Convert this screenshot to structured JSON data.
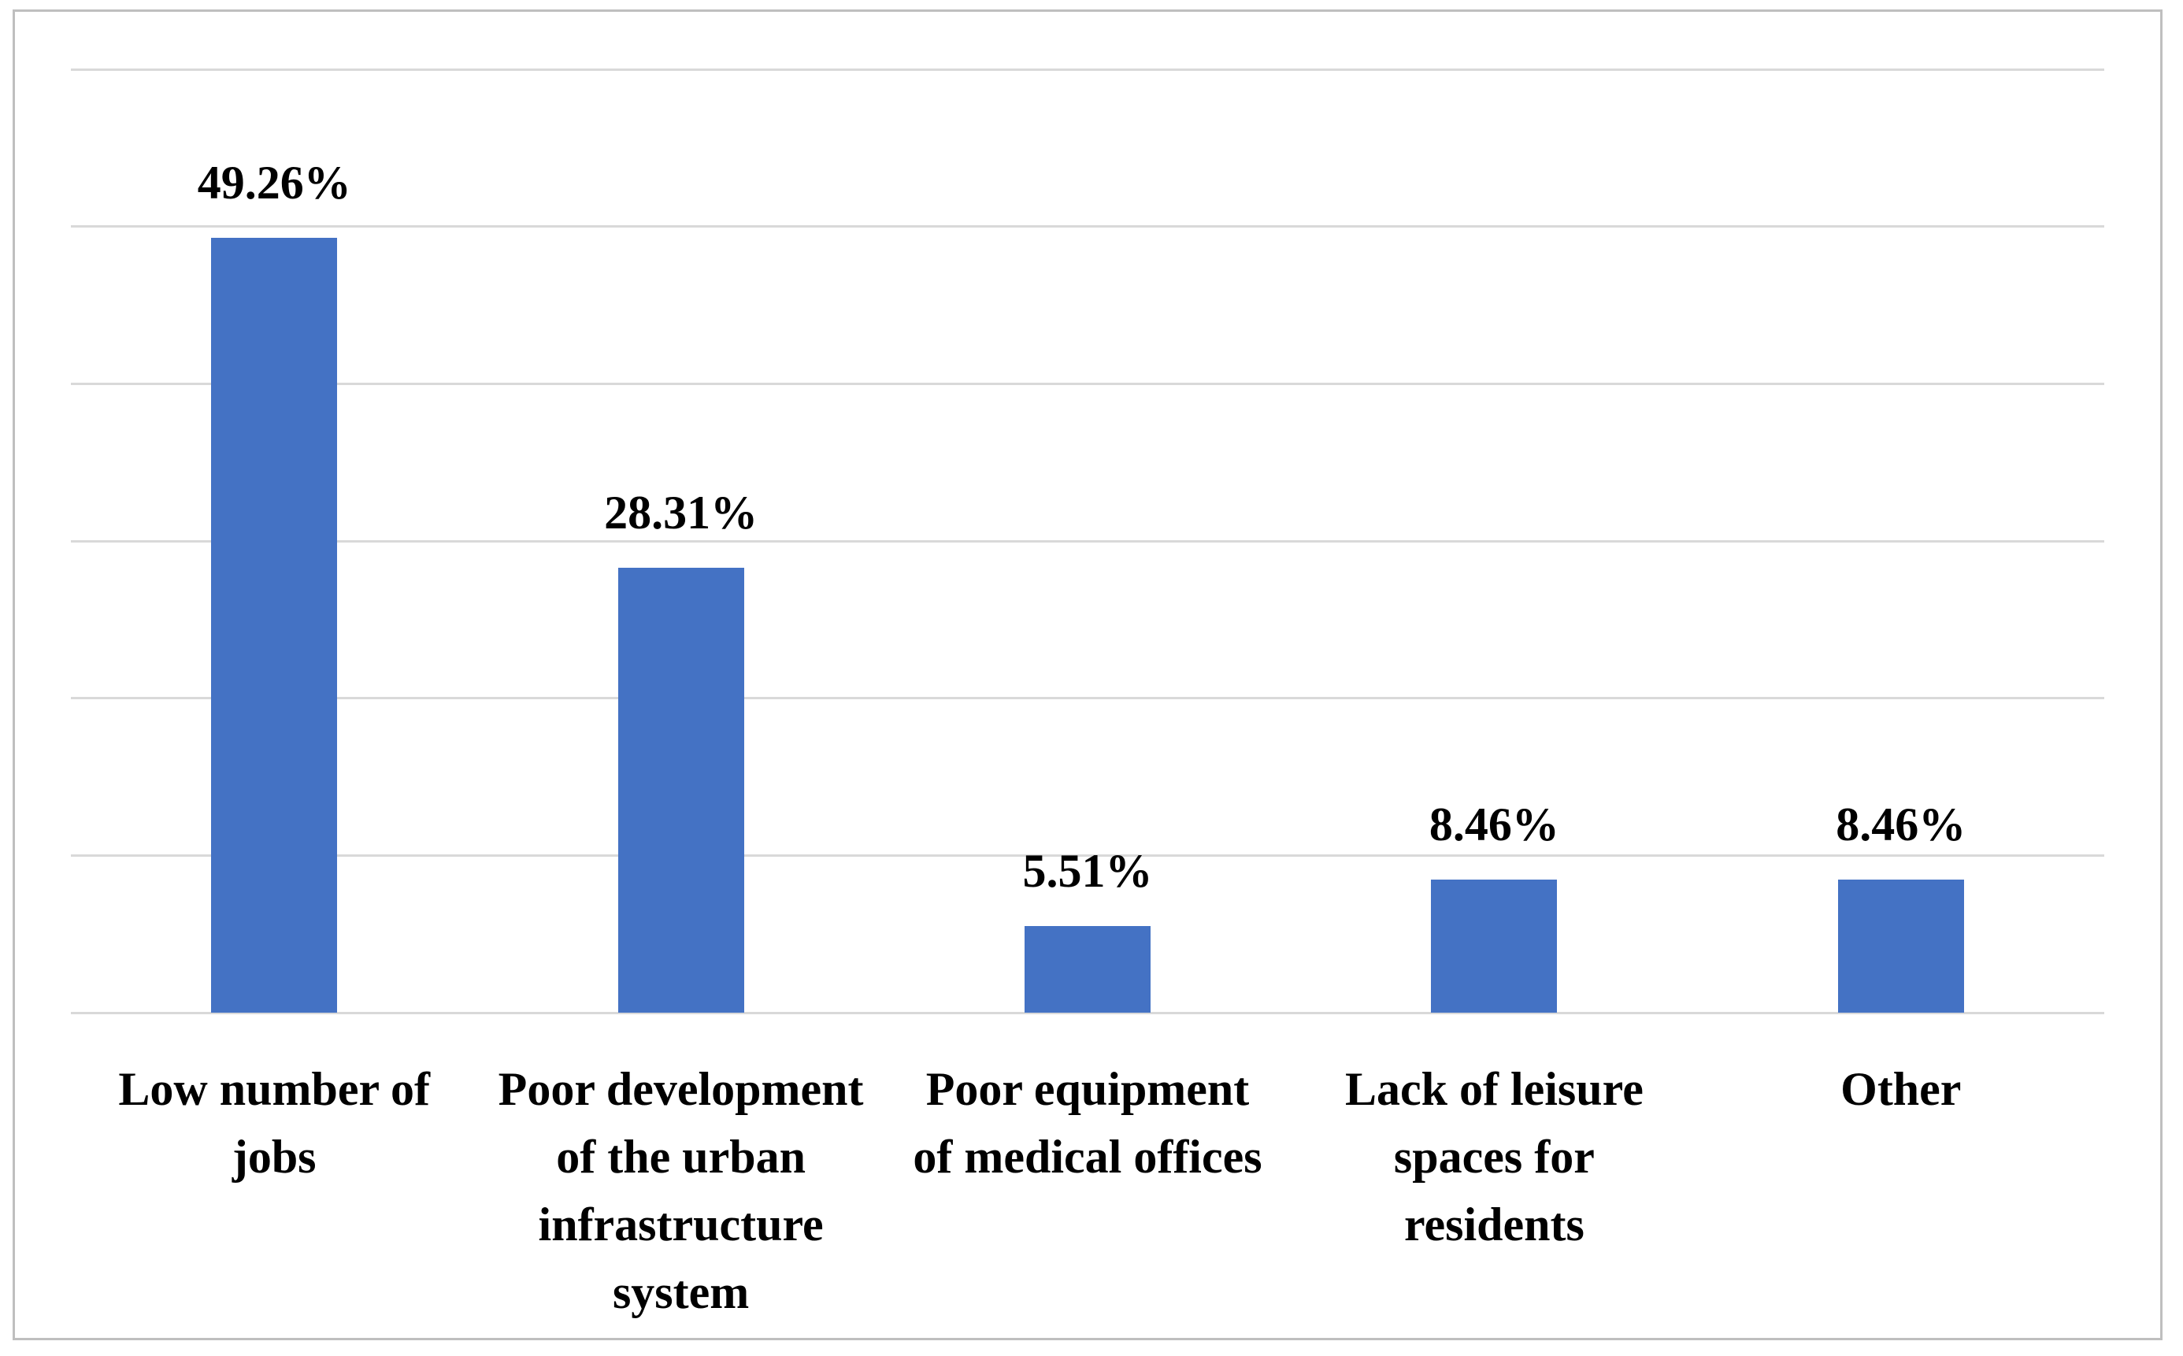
{
  "chart_data": {
    "type": "bar",
    "categories": [
      "Low number of\njobs",
      "Poor development\nof the urban\ninfrastructure\nsystem",
      "Poor equipment\nof medical offices",
      "Lack of leisure\nspaces for\nresidents",
      "Other"
    ],
    "values": [
      49.26,
      28.31,
      5.51,
      8.46,
      8.46
    ],
    "data_labels": [
      "49.26%",
      "28.31%",
      "5.51%",
      "8.46%",
      "8.46%"
    ],
    "ylim": [
      0,
      60
    ],
    "grid_step": 10,
    "y_tick_labels_visible": false,
    "legend": "none",
    "grid": "horizontal",
    "bar_color": "#4472c4",
    "gridline_color": "#d9d9d9",
    "frame_border_color": "#bfbfbf",
    "label_color": "#000000",
    "background_color": "#ffffff"
  }
}
